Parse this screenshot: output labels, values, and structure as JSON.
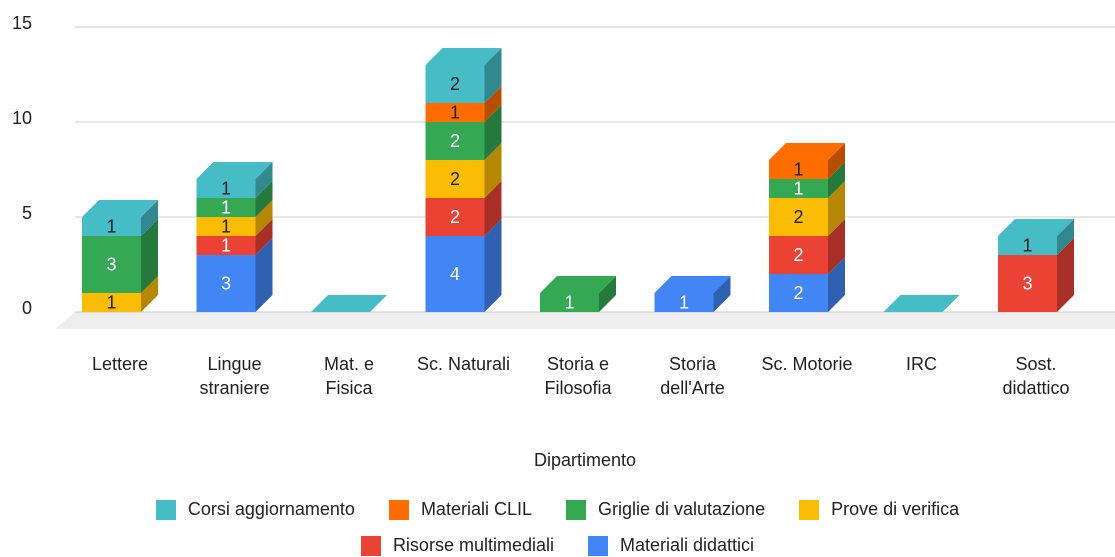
{
  "chart_data": {
    "type": "bar3d_stacked",
    "x_label": "Dipartimento",
    "categories": [
      "Lettere",
      "Lingue straniere",
      "Mat. e Fisica",
      "Sc. Naturali",
      "Storia e Filosofia",
      "Storia dell'Arte",
      "Sc. Motorie",
      "IRC",
      "Sost. didattico"
    ],
    "series": [
      {
        "name": "Materiali didattici",
        "color": "#4285f4",
        "label_color": "#ffffff",
        "values": [
          null,
          3,
          null,
          4,
          null,
          1,
          2,
          null,
          null
        ]
      },
      {
        "name": "Risorse multimediali",
        "color": "#ea4335",
        "label_color": "#ffffff",
        "values": [
          null,
          1,
          null,
          2,
          null,
          null,
          2,
          null,
          3
        ]
      },
      {
        "name": "Prove di verifica",
        "color": "#fbbc04",
        "label_color": "#222222",
        "values": [
          1,
          1,
          null,
          2,
          null,
          null,
          2,
          null,
          null
        ]
      },
      {
        "name": "Griglie di valutazione",
        "color": "#34a853",
        "label_color": "#ffffff",
        "values": [
          3,
          1,
          null,
          2,
          1,
          null,
          1,
          null,
          null
        ]
      },
      {
        "name": "Materiali CLIL",
        "color": "#ff6d01",
        "label_color": "#222222",
        "values": [
          null,
          null,
          null,
          1,
          null,
          null,
          1,
          null,
          null
        ]
      },
      {
        "name": "Corsi aggiornamento",
        "color": "#46bdc6",
        "label_color": "#222222",
        "values": [
          1,
          1,
          null,
          2,
          null,
          null,
          null,
          null,
          1
        ]
      }
    ],
    "ylim": [
      0,
      15
    ],
    "yticks": [
      0,
      5,
      10,
      15
    ],
    "grid": true
  }
}
